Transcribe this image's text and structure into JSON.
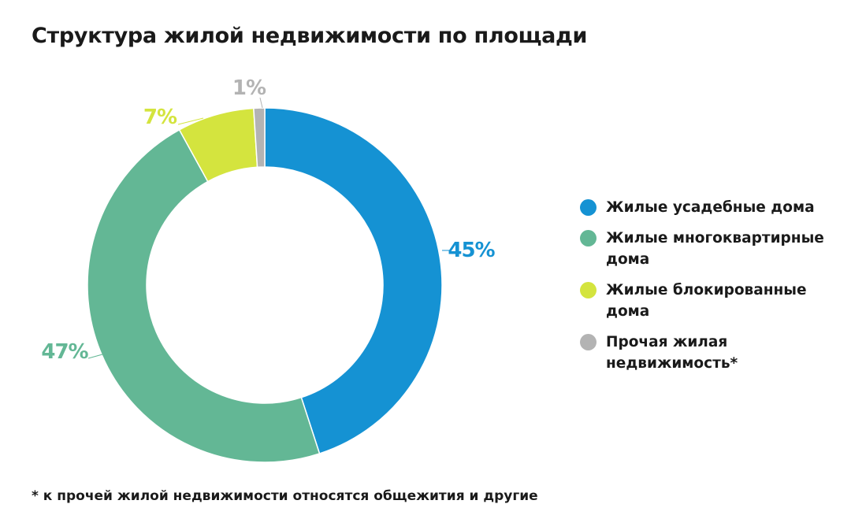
{
  "chart_data": {
    "type": "pie",
    "donut": true,
    "title": "Структура жилой недвижимости по площади",
    "footnote": "* к прочей жилой недвижимости относятся общежития и другие",
    "slices": [
      {
        "label": "Жилые усадебные дома",
        "value": 45,
        "value_label": "45%",
        "color": "#1592d3"
      },
      {
        "label": "Жилые многоквартирные дома",
        "value": 47,
        "value_label": "47%",
        "color": "#63b795"
      },
      {
        "label": "Жилые блокированные дома",
        "value": 7,
        "value_label": "7%",
        "color": "#d4e43e"
      },
      {
        "label": "Прочая жилая недвижимость*",
        "value": 1,
        "value_label": "1%",
        "color": "#b3b3b3"
      }
    ],
    "legend_position": "right"
  }
}
